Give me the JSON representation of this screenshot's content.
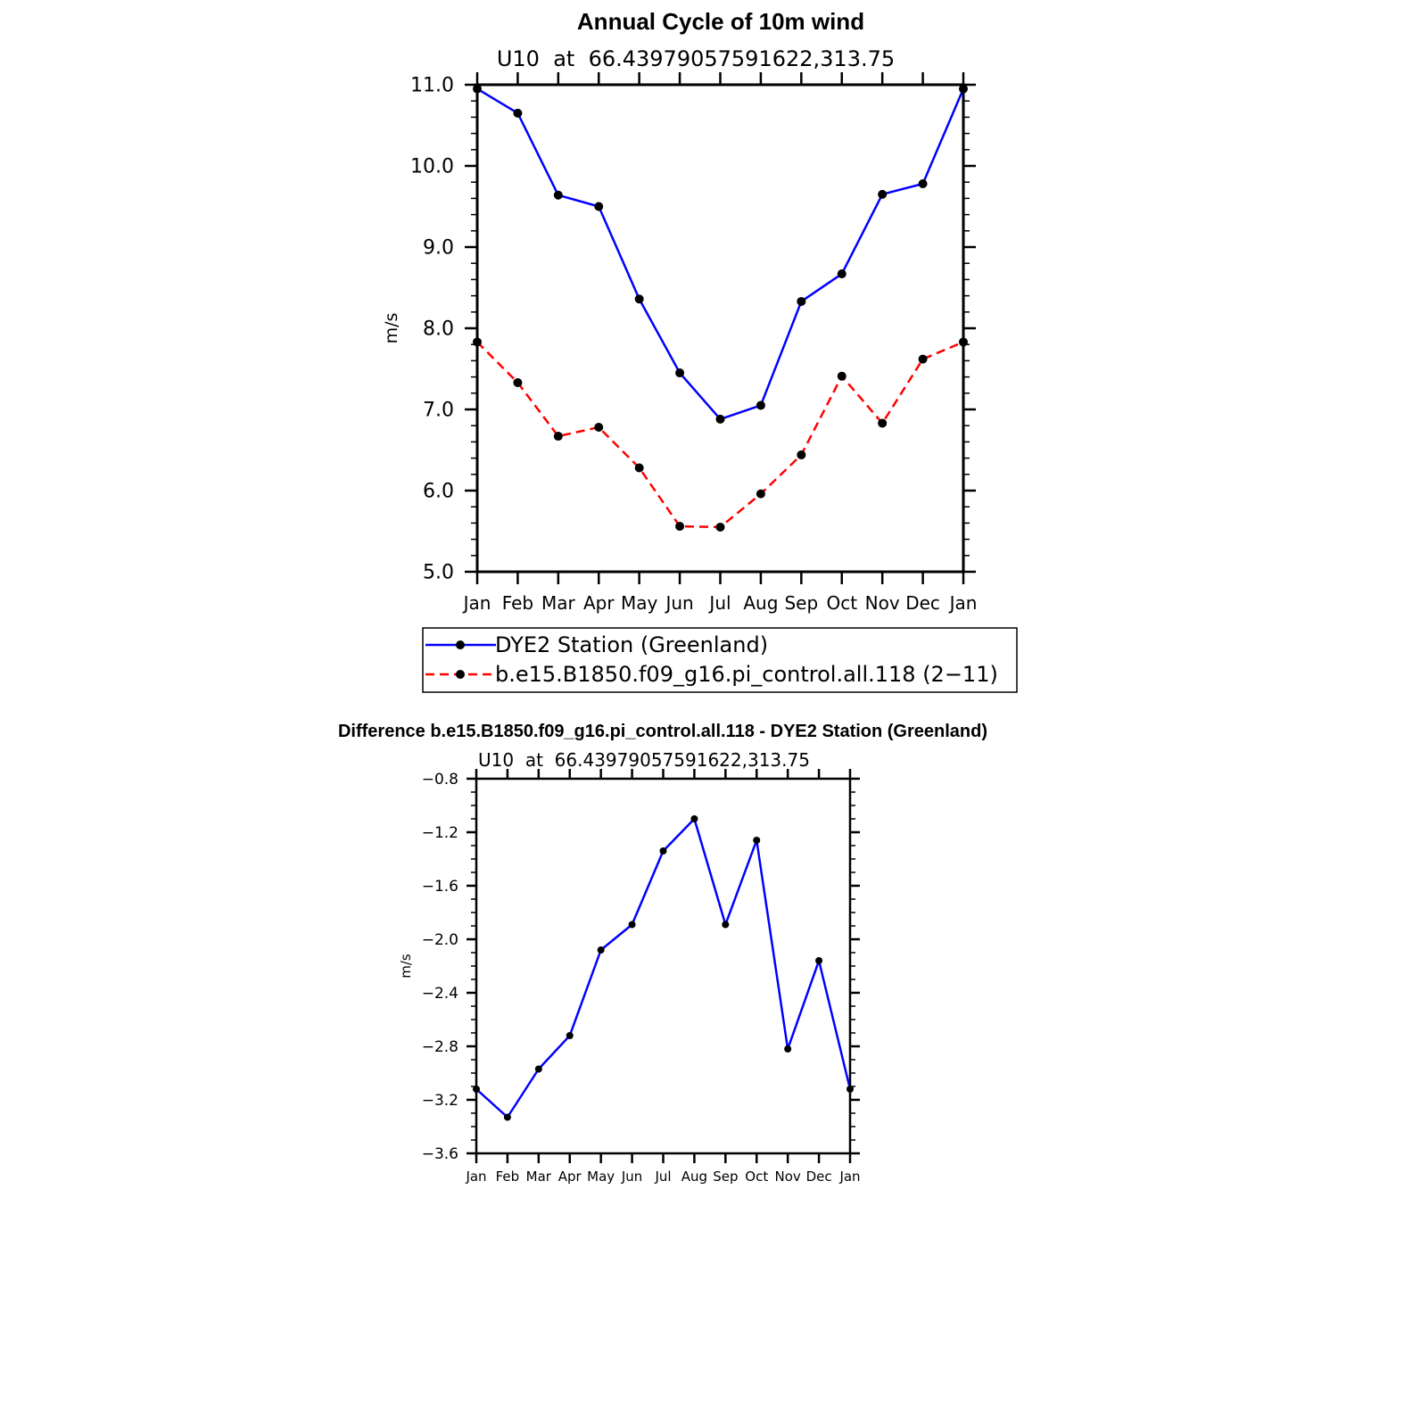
{
  "chart_data": [
    {
      "type": "line",
      "title": "Annual Cycle of 10m wind",
      "subtitle": "U10  at  66.43979057591622,313.75",
      "xlabel": "",
      "ylabel": "m/s",
      "categories": [
        "Jan",
        "Feb",
        "Mar",
        "Apr",
        "May",
        "Jun",
        "Jul",
        "Aug",
        "Sep",
        "Oct",
        "Nov",
        "Dec",
        "Jan"
      ],
      "ylim": [
        5.0,
        11.0
      ],
      "yticks": [
        "5.0",
        "6.0",
        "7.0",
        "8.0",
        "9.0",
        "10.0",
        "11.0"
      ],
      "legend_position": "below",
      "series": [
        {
          "name": "DYE2 Station (Greenland)",
          "color": "#0000ff",
          "dash": "solid",
          "values": [
            10.95,
            10.65,
            9.64,
            9.5,
            8.36,
            7.45,
            6.88,
            7.05,
            8.33,
            8.67,
            9.65,
            9.78,
            10.95
          ]
        },
        {
          "name": "b.e15.B1850.f09_g16.pi_control.all.118 (2−11)",
          "color": "#ff0000",
          "dash": "dashed",
          "values": [
            7.83,
            7.33,
            6.67,
            6.78,
            6.28,
            5.56,
            5.55,
            5.96,
            6.44,
            7.41,
            6.83,
            7.62,
            7.83
          ]
        }
      ]
    },
    {
      "type": "line",
      "title": "Difference b.e15.B1850.f09_g16.pi_control.all.118 - DYE2 Station (Greenland)",
      "subtitle": "U10  at  66.43979057591622,313.75",
      "xlabel": "",
      "ylabel": "m/s",
      "categories": [
        "Jan",
        "Feb",
        "Mar",
        "Apr",
        "May",
        "Jun",
        "Jul",
        "Aug",
        "Sep",
        "Oct",
        "Nov",
        "Dec",
        "Jan"
      ],
      "ylim": [
        -3.6,
        -0.8
      ],
      "yticks": [
        "−3.6",
        "−3.2",
        "−2.8",
        "−2.4",
        "−2.0",
        "−1.6",
        "−1.2",
        "−0.8"
      ],
      "series": [
        {
          "name": "Difference",
          "color": "#0000ff",
          "dash": "solid",
          "values": [
            -3.12,
            -3.33,
            -2.97,
            -2.72,
            -2.08,
            -1.89,
            -1.34,
            -1.1,
            -1.89,
            -1.26,
            -2.82,
            -2.16,
            -3.12
          ]
        }
      ]
    }
  ]
}
